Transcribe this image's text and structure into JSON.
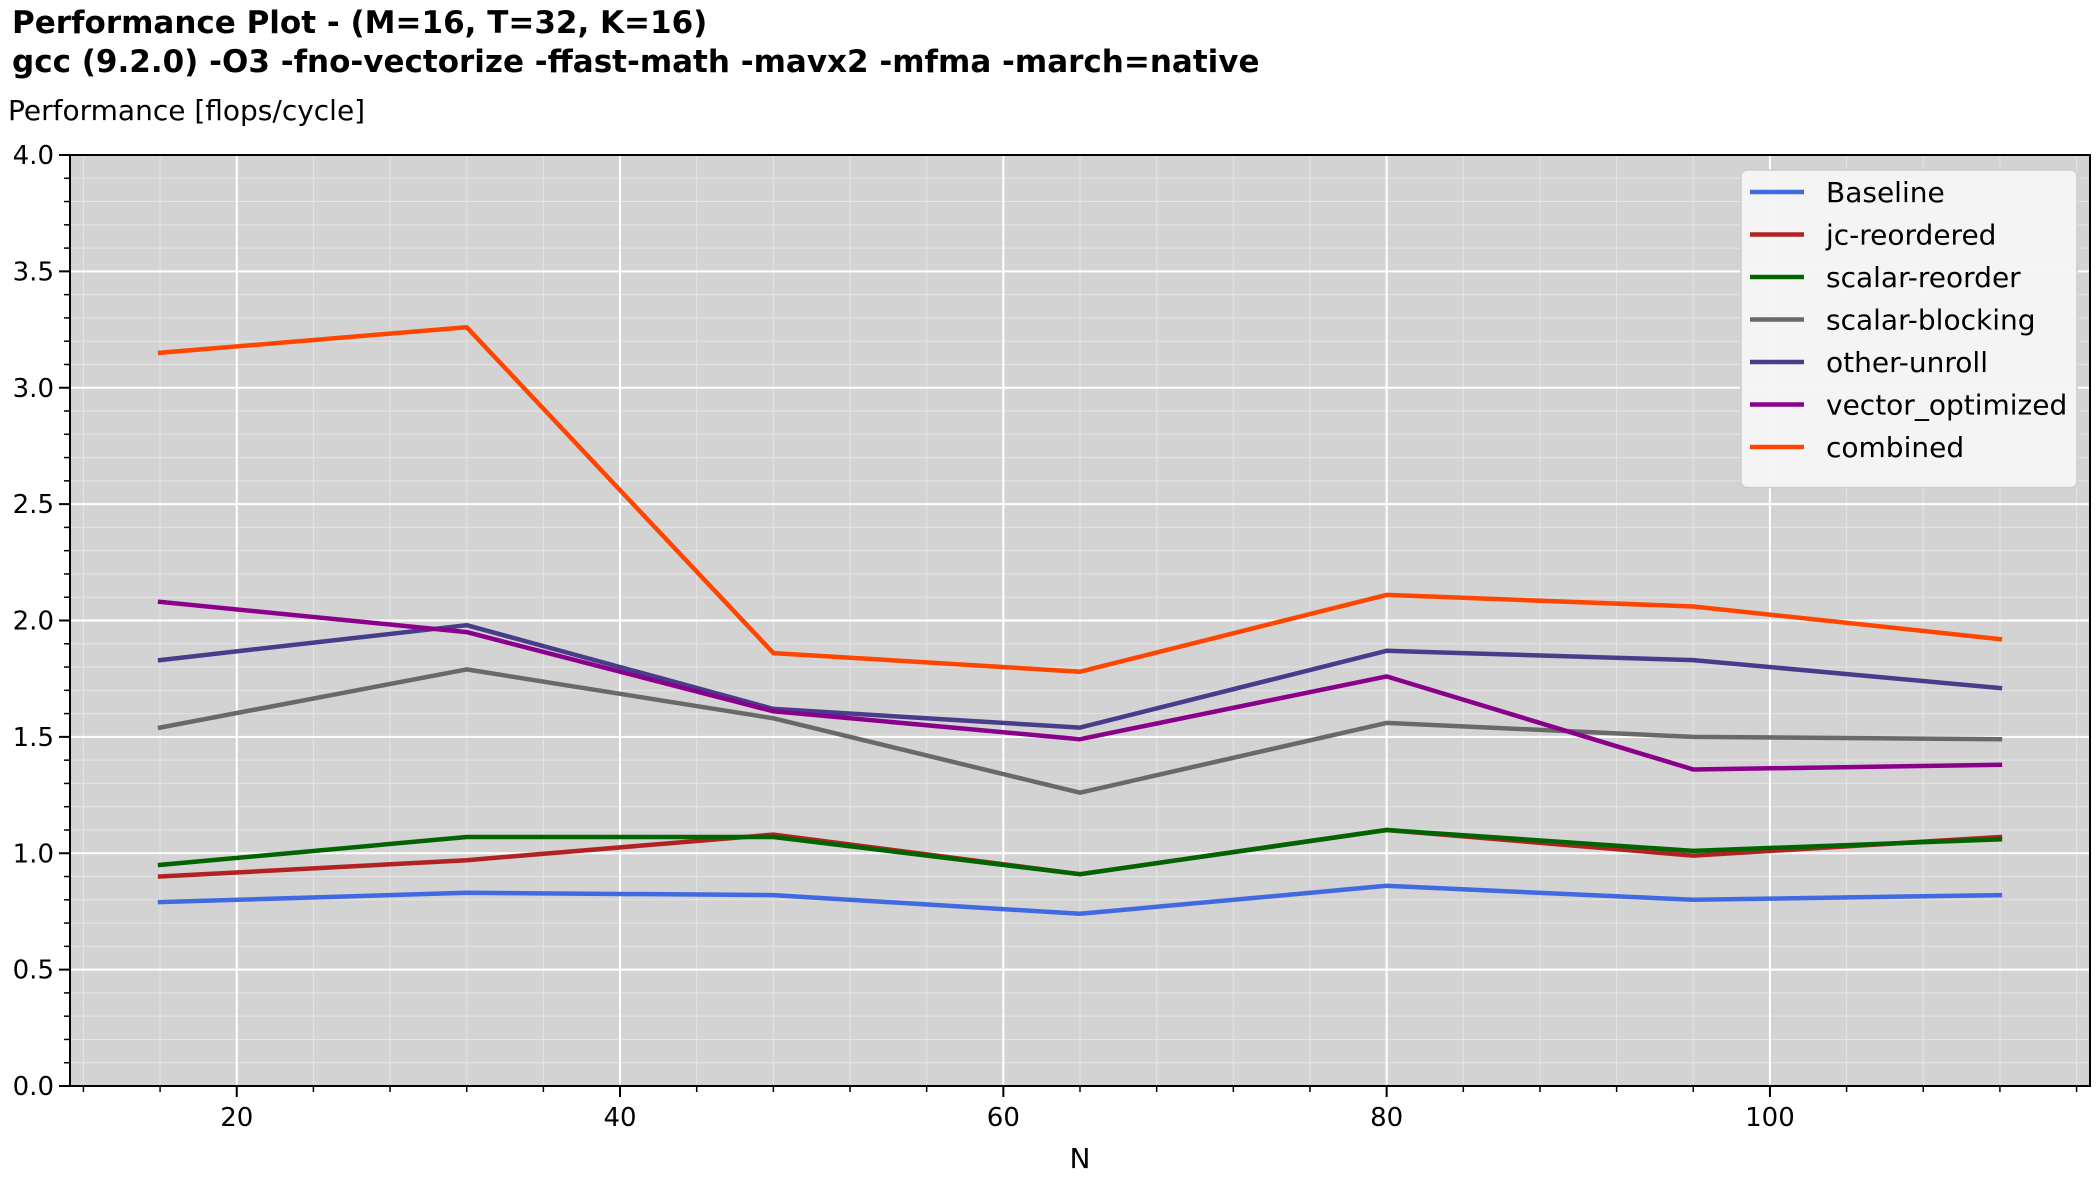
{
  "chart_data": {
    "type": "line",
    "title": "Performance Plot  -  (M=16, T=32, K=16)",
    "subtitle": "gcc (9.2.0) -O3 -fno-vectorize -ffast-math -mavx2 -mfma -march=native",
    "ylabel": "Performance [flops/cycle]",
    "xlabel": "N",
    "xlim": [
      11.3,
      116.7
    ],
    "ylim": [
      0.0,
      4.0
    ],
    "xticks": [
      20,
      40,
      60,
      80,
      100
    ],
    "xtick_labels": [
      "20",
      "40",
      "60",
      "80",
      "100"
    ],
    "yticks": [
      0.0,
      0.5,
      1.0,
      1.5,
      2.0,
      2.5,
      3.0,
      3.5,
      4.0
    ],
    "ytick_labels": [
      "0.0",
      "0.5",
      "1.0",
      "1.5",
      "2.0",
      "2.5",
      "3.0",
      "3.5",
      "4.0"
    ],
    "grid": true,
    "legend_position": "top-right",
    "background": "#d3d3d3",
    "x": [
      16,
      32,
      48,
      64,
      80,
      96,
      112
    ],
    "series": [
      {
        "name": "Baseline",
        "color": "#4169e1",
        "values": [
          0.79,
          0.83,
          0.82,
          0.74,
          0.86,
          0.8,
          0.82
        ]
      },
      {
        "name": "jc-reordered",
        "color": "#b22222",
        "values": [
          0.9,
          0.97,
          1.08,
          0.91,
          1.1,
          0.99,
          1.07
        ]
      },
      {
        "name": "scalar-reorder",
        "color": "#006400",
        "values": [
          0.95,
          1.07,
          1.07,
          0.91,
          1.1,
          1.01,
          1.06
        ]
      },
      {
        "name": "scalar-blocking",
        "color": "#696969",
        "values": [
          1.54,
          1.79,
          1.58,
          1.26,
          1.56,
          1.5,
          1.49
        ]
      },
      {
        "name": "other-unroll",
        "color": "#483d8b",
        "values": [
          1.83,
          1.98,
          1.62,
          1.54,
          1.87,
          1.83,
          1.71
        ]
      },
      {
        "name": "vector_optimized",
        "color": "#8b008b",
        "values": [
          2.08,
          1.95,
          1.61,
          1.49,
          1.76,
          1.36,
          1.38
        ]
      },
      {
        "name": "combined",
        "color": "#ff4500",
        "values": [
          3.15,
          3.26,
          1.86,
          1.78,
          2.11,
          2.06,
          1.92
        ]
      }
    ]
  }
}
